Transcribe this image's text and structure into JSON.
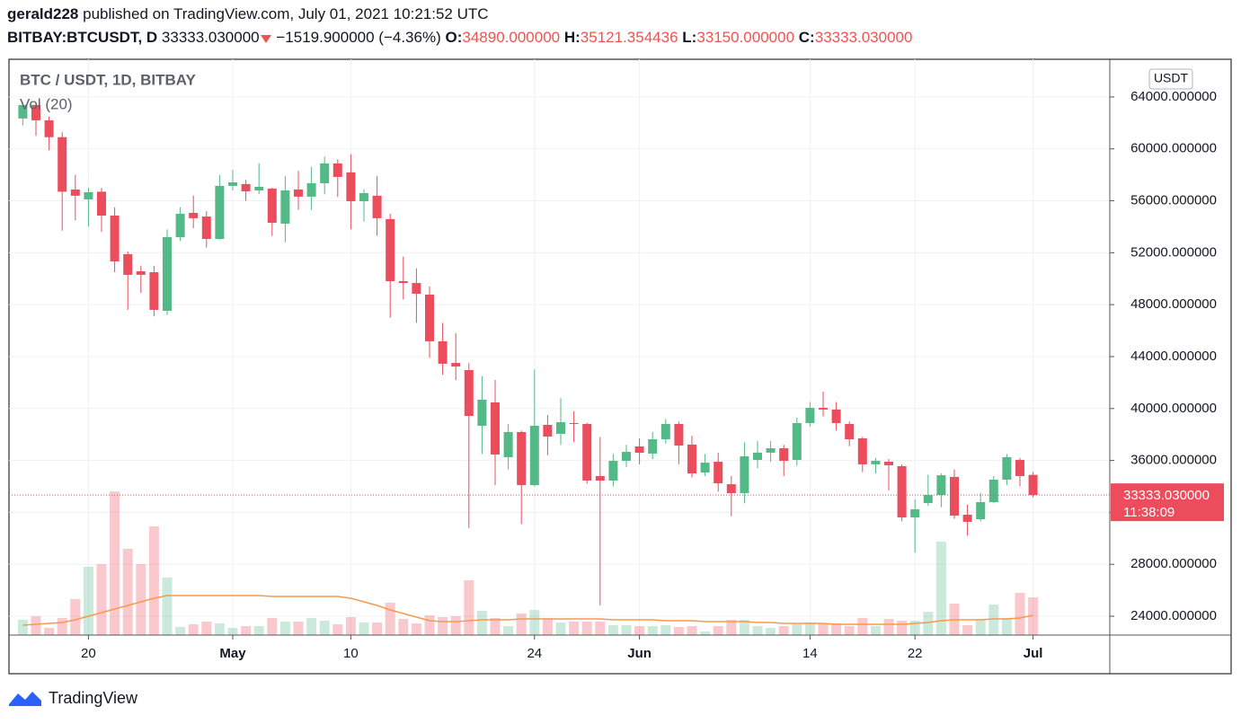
{
  "header": {
    "user": "gerald228",
    "published": "published on TradingView.com, July 01, 2021 10:21:52 UTC",
    "symbol": "BITBAY:BTCUSDT, D",
    "last": "33333.030000",
    "change": "−1519.900000 (−4.36%)",
    "o_label": "O:",
    "o": "34890.000000",
    "h_label": "H:",
    "h": "35121.354436",
    "l_label": "L:",
    "l": "33150.000000",
    "c_label": "C:",
    "c": "33333.030000"
  },
  "chart_data": {
    "type": "candlestick",
    "title": "BTC / USDT, 1D, BITBAY",
    "volume_title": "Vol (20)",
    "currency": "USDT",
    "x": [
      "04-15",
      "04-16",
      "04-17",
      "04-18",
      "04-19",
      "04-20",
      "04-21",
      "04-22",
      "04-23",
      "04-24",
      "04-25",
      "04-26",
      "04-27",
      "04-28",
      "04-29",
      "04-30",
      "05-01",
      "05-02",
      "05-03",
      "05-04",
      "05-05",
      "05-06",
      "05-07",
      "05-08",
      "05-09",
      "05-10",
      "05-11",
      "05-12",
      "05-13",
      "05-14",
      "05-15",
      "05-16",
      "05-17",
      "05-18",
      "05-19",
      "05-20",
      "05-21",
      "05-22",
      "05-23",
      "05-24",
      "05-25",
      "05-26",
      "05-27",
      "05-28",
      "05-29",
      "05-30",
      "05-31",
      "06-01",
      "06-02",
      "06-03",
      "06-04",
      "06-05",
      "06-06",
      "06-07",
      "06-08",
      "06-09",
      "06-10",
      "06-11",
      "06-12",
      "06-13",
      "06-14",
      "06-15",
      "06-16",
      "06-17",
      "06-18",
      "06-19",
      "06-20",
      "06-21",
      "06-22",
      "06-23",
      "06-24",
      "06-25",
      "06-26",
      "06-27",
      "06-28",
      "06-29",
      "06-30",
      "07-01"
    ],
    "open": [
      62340,
      63380,
      62200,
      60900,
      56870,
      56110,
      56700,
      54860,
      51890,
      50570,
      50500,
      47530,
      53200,
      55070,
      54790,
      53060,
      57150,
      57290,
      56800,
      56940,
      54240,
      56870,
      56320,
      57350,
      58880,
      58190,
      55970,
      56390,
      54590,
      49810,
      49670,
      48770,
      45180,
      43510,
      42960,
      38670,
      40470,
      36250,
      38190,
      34100,
      38740,
      38050,
      38880,
      38810,
      34800,
      34450,
      35970,
      37080,
      36530,
      37630,
      38810,
      37220,
      35070,
      35900,
      34170,
      33480,
      36040,
      36600,
      36940,
      36040,
      38880,
      40050,
      39920,
      38810,
      37700,
      35700,
      35900,
      35560,
      31610,
      32720,
      33340,
      34730,
      31820,
      31470,
      32790,
      34520,
      36040,
      34890
    ],
    "high": [
      63600,
      63500,
      62500,
      61300,
      58000,
      57000,
      57000,
      55500,
      52100,
      51000,
      51000,
      53800,
      55500,
      56400,
      55200,
      58000,
      58400,
      57600,
      58900,
      57000,
      57900,
      58300,
      58600,
      59400,
      59200,
      59600,
      56900,
      57900,
      55000,
      51700,
      50800,
      49400,
      46600,
      45800,
      43500,
      42500,
      42200,
      38800,
      38300,
      43000,
      39500,
      40800,
      39800,
      38900,
      37800,
      36500,
      37200,
      37700,
      38200,
      39200,
      39000,
      37900,
      36500,
      36600,
      34800,
      37400,
      37500,
      37500,
      37200,
      39300,
      40500,
      41300,
      40500,
      39000,
      37800,
      36200,
      36100,
      35700,
      33000,
      34900,
      35000,
      35300,
      32600,
      33500,
      34800,
      36500,
      36200,
      35121.354436
    ],
    "low": [
      61800,
      61000,
      59900,
      53700,
      54500,
      54000,
      53600,
      50500,
      47600,
      48900,
      47100,
      47200,
      52900,
      53900,
      52400,
      53000,
      56800,
      56000,
      56500,
      53300,
      52800,
      55300,
      55300,
      56500,
      56300,
      53800,
      54400,
      53300,
      47000,
      48400,
      46600,
      43900,
      42600,
      42200,
      30800,
      36500,
      34100,
      35300,
      31100,
      34000,
      36400,
      37200,
      37400,
      34200,
      24830,
      34000,
      35500,
      35700,
      36100,
      37300,
      35700,
      34700,
      34800,
      33600,
      31700,
      32700,
      35400,
      35900,
      34800,
      35600,
      38600,
      39400,
      38300,
      37100,
      35100,
      35000,
      33700,
      31300,
      28900,
      32500,
      32400,
      31500,
      30200,
      31300,
      32700,
      34100,
      34000,
      33150
    ],
    "close": [
      63380,
      62200,
      60900,
      56700,
      56390,
      56660,
      54860,
      51330,
      50300,
      50300,
      47600,
      53200,
      55000,
      54660,
      53060,
      57150,
      57420,
      56730,
      57080,
      54310,
      56800,
      56320,
      57350,
      58880,
      57840,
      55970,
      56590,
      54660,
      49810,
      49670,
      48840,
      45180,
      43450,
      43240,
      39430,
      40680,
      36460,
      38190,
      34100,
      38670,
      37840,
      38950,
      38810,
      34450,
      34450,
      35970,
      36660,
      36590,
      37630,
      38810,
      37150,
      35000,
      35830,
      34240,
      33480,
      36320,
      36600,
      36940,
      35970,
      38880,
      40050,
      39920,
      38880,
      37630,
      35700,
      35970,
      35630,
      31610,
      32240,
      33340,
      34860,
      31750,
      31270,
      32790,
      34520,
      36250,
      34800,
      33333.03
    ],
    "volume": [
      17,
      21,
      8,
      19,
      40,
      76,
      79,
      160,
      96,
      79,
      121,
      64,
      9,
      12,
      15,
      13,
      8,
      10,
      10,
      19,
      15,
      15,
      19,
      16,
      12,
      20,
      14,
      14,
      36,
      18,
      13,
      22,
      20,
      21,
      61,
      27,
      19,
      10,
      24,
      28,
      19,
      14,
      15,
      15,
      15,
      11,
      11,
      10,
      10,
      11,
      9,
      10,
      4,
      10,
      17,
      17,
      10,
      8,
      10,
      12,
      14,
      13,
      13,
      10,
      19,
      10,
      18,
      16,
      16,
      26,
      104,
      35,
      11,
      18,
      34,
      19,
      47,
      42
    ],
    "volume_ma": [
      11,
      12,
      13,
      14,
      17,
      21,
      25,
      29,
      33,
      37,
      41,
      44,
      44,
      44,
      44,
      44,
      44,
      44,
      44,
      43,
      43,
      43,
      43,
      43,
      43,
      41,
      37,
      33,
      28,
      24,
      20,
      16,
      15,
      15,
      16,
      17,
      17,
      17,
      18,
      18,
      18,
      18,
      18,
      18,
      18,
      17,
      17,
      17,
      17,
      16,
      16,
      16,
      15,
      15,
      15,
      15,
      14,
      14,
      13,
      13,
      13,
      13,
      12,
      12,
      12,
      12,
      12,
      12,
      13,
      14,
      16,
      17,
      17,
      17,
      18,
      18,
      19,
      22
    ],
    "up_color": "#53b987",
    "down_color": "#eb4d5c",
    "volume_ma_color": "#f79a4c",
    "ylim": [
      22550,
      66900
    ],
    "volume_ylim": [
      0,
      200
    ],
    "yticks": [
      {
        "value": 24000,
        "label": "24000.000000"
      },
      {
        "value": 28000,
        "label": "28000.000000"
      },
      {
        "value": 32000,
        "label": "32000.000000"
      },
      {
        "value": 36000,
        "label": "36000.000000"
      },
      {
        "value": 40000,
        "label": "40000.000000"
      },
      {
        "value": 44000,
        "label": "44000.000000"
      },
      {
        "value": 48000,
        "label": "48000.000000"
      },
      {
        "value": 52000,
        "label": "52000.000000"
      },
      {
        "value": 56000,
        "label": "56000.000000"
      },
      {
        "value": 60000,
        "label": "60000.000000"
      },
      {
        "value": 64000,
        "label": "64000.000000"
      }
    ],
    "xticks": [
      {
        "value": "04-20",
        "label": "20"
      },
      {
        "value": "05-01",
        "label": "May"
      },
      {
        "value": "05-10",
        "label": "10"
      },
      {
        "value": "05-24",
        "label": "24"
      },
      {
        "value": "06-01",
        "label": "Jun"
      },
      {
        "value": "06-14",
        "label": "14"
      },
      {
        "value": "06-22",
        "label": "22"
      },
      {
        "value": "07-01",
        "label": "Jul"
      }
    ],
    "last_price_label": "33333.030000",
    "countdown": "11:38:09",
    "grid": true
  },
  "footer": {
    "brand": "TradingView"
  }
}
